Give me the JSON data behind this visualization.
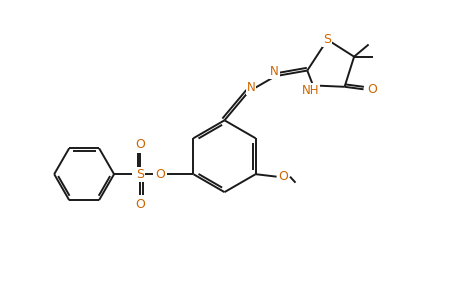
{
  "background_color": "#ffffff",
  "line_color": "#1a1a1a",
  "heteroatom_color": "#cc6600",
  "figsize": [
    4.49,
    2.86
  ],
  "dpi": 100,
  "bond_width": 1.4,
  "font_size": 8.5,
  "xlim": [
    0,
    9
  ],
  "ylim": [
    0,
    5.73
  ]
}
